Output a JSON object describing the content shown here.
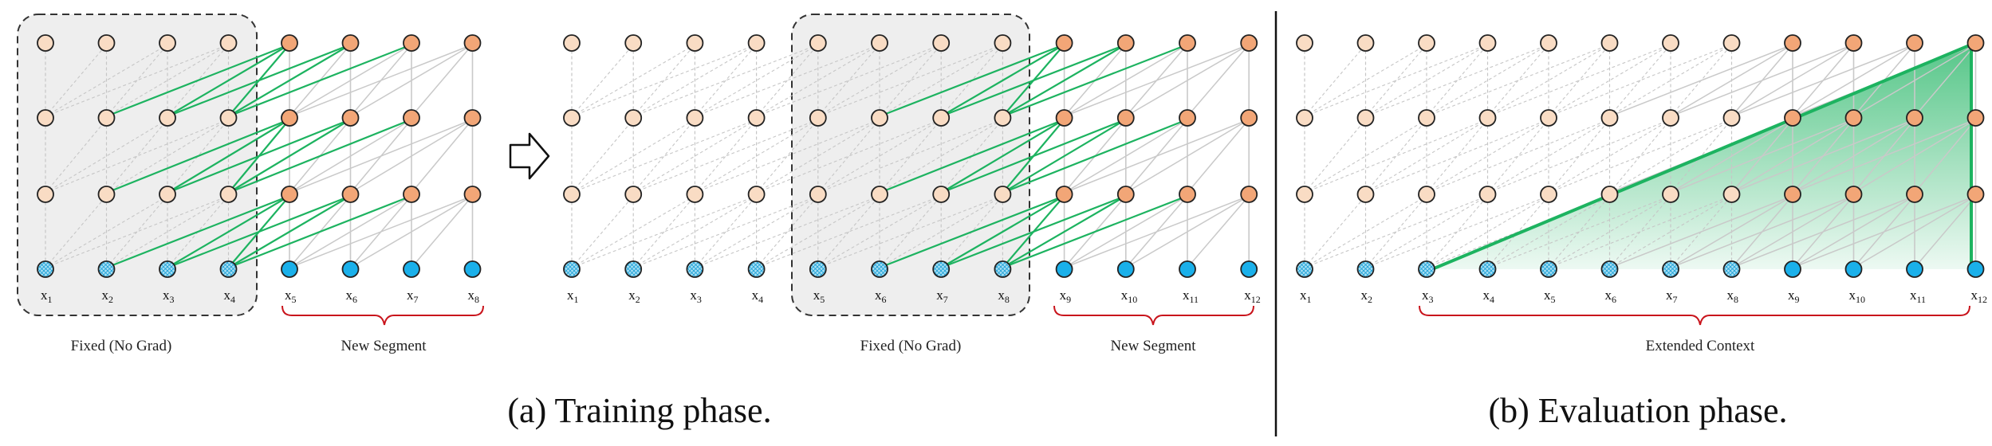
{
  "colors": {
    "hidden_fixed": "#f9dcc4",
    "hidden_new": "#f2a677",
    "input": "#1ab0ea",
    "input_fixed": "#a9e0f4",
    "green": "#1db360",
    "gray": "#c9c9c9",
    "dotted": "#c6c6c6",
    "brace": "#c9141c",
    "fixed_box": "#eeeeee",
    "extended_fill": "#1db360"
  },
  "panels": {
    "training": {
      "caption": "(a) Training phase.",
      "phase1": {
        "tokens": [
          {
            "b": "x",
            "s": "1"
          },
          {
            "b": "x",
            "s": "2"
          },
          {
            "b": "x",
            "s": "3"
          },
          {
            "b": "x",
            "s": "4"
          },
          {
            "b": "x",
            "s": "5"
          },
          {
            "b": "x",
            "s": "6"
          },
          {
            "b": "x",
            "s": "7"
          },
          {
            "b": "x",
            "s": "8"
          }
        ],
        "fixed_label": "Fixed (No Grad)",
        "new_label": "New Segment"
      },
      "phase2": {
        "tokens": [
          {
            "b": "x",
            "s": "1"
          },
          {
            "b": "x",
            "s": "2"
          },
          {
            "b": "x",
            "s": "3"
          },
          {
            "b": "x",
            "s": "4"
          },
          {
            "b": "x",
            "s": "5"
          },
          {
            "b": "x",
            "s": "6"
          },
          {
            "b": "x",
            "s": "7"
          },
          {
            "b": "x",
            "s": "8"
          },
          {
            "b": "x",
            "s": "9"
          },
          {
            "b": "x",
            "s": "10"
          },
          {
            "b": "x",
            "s": "11"
          },
          {
            "b": "x",
            "s": "12"
          }
        ],
        "fixed_label": "Fixed (No Grad)",
        "new_label": "New Segment"
      }
    },
    "evaluation": {
      "caption": "(b) Evaluation phase.",
      "tokens": [
        {
          "b": "x",
          "s": "1"
        },
        {
          "b": "x",
          "s": "2"
        },
        {
          "b": "x",
          "s": "3"
        },
        {
          "b": "x",
          "s": "4"
        },
        {
          "b": "x",
          "s": "5"
        },
        {
          "b": "x",
          "s": "6"
        },
        {
          "b": "x",
          "s": "7"
        },
        {
          "b": "x",
          "s": "8"
        },
        {
          "b": "x",
          "s": "9"
        },
        {
          "b": "x",
          "s": "10"
        },
        {
          "b": "x",
          "s": "11"
        },
        {
          "b": "x",
          "s": "12"
        }
      ],
      "extended_label": "Extended Context"
    }
  }
}
